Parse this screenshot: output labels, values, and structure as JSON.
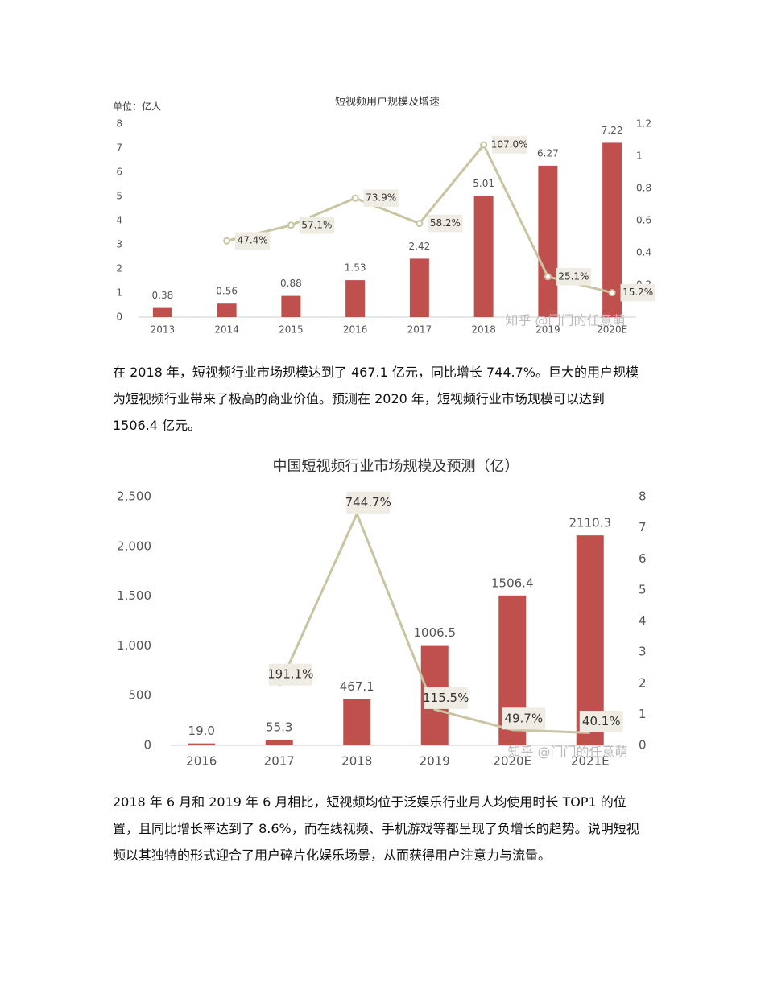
{
  "chart_data": [
    {
      "type": "bar",
      "title": "短视频用户规模及增速",
      "unit": "单位：亿人",
      "watermark": "知乎 @门门的任意萌",
      "categories": [
        "2013",
        "2014",
        "2015",
        "2016",
        "2017",
        "2018",
        "2019",
        "2020E"
      ],
      "series": [
        {
          "type": "bar",
          "color": "#c0504d",
          "values": [
            0.38,
            0.56,
            0.88,
            1.53,
            2.42,
            5.01,
            6.27,
            7.22
          ]
        },
        {
          "type": "line",
          "axis": "y2",
          "color": "#c9c4a2",
          "values": [
            null,
            0.474,
            0.571,
            0.739,
            0.582,
            1.07,
            0.251,
            0.152
          ],
          "value_labels": [
            null,
            "47.4%",
            "57.1%",
            "73.9%",
            "58.2%",
            "107.0%",
            "25.1%",
            "15.2%"
          ]
        }
      ],
      "ylim": [
        0,
        8
      ],
      "yticks": [
        0,
        1,
        2,
        3,
        4,
        5,
        6,
        7,
        8
      ],
      "y2lim": [
        0,
        1.2
      ],
      "y2ticks": [
        0.2,
        0.4,
        0.6,
        0.8,
        1,
        1.2
      ]
    },
    {
      "type": "bar",
      "title": "中国短视频行业市场规模及预测（亿）",
      "watermark": "知乎 @门门的任意萌",
      "categories": [
        "2016",
        "2017",
        "2018",
        "2019",
        "2020E",
        "2021E"
      ],
      "series": [
        {
          "type": "bar",
          "color": "#c0504d",
          "values": [
            19.0,
            55.3,
            467.1,
            1006.5,
            1506.4,
            2110.3
          ],
          "value_labels": [
            "19.0",
            "55.3",
            "467.1",
            "1006.5",
            "1506.4",
            "2110.3"
          ]
        },
        {
          "type": "line",
          "axis": "y2",
          "color": "#c9c4a2",
          "values": [
            null,
            1.911,
            7.447,
            1.155,
            0.497,
            0.401
          ],
          "value_labels": [
            null,
            "191.1%",
            "744.7%",
            "115.5%",
            "49.7%",
            "40.1%"
          ]
        }
      ],
      "ylim": [
        0,
        2500
      ],
      "yticks": [
        0,
        500,
        {
          "value": 1000,
          "label": "1,000"
        },
        {
          "value": 1500,
          "label": "1,500"
        },
        {
          "value": 2000,
          "label": "2,000"
        },
        {
          "value": 2500,
          "label": "2,500"
        }
      ],
      "y2lim": [
        0,
        8
      ],
      "y2ticks": [
        0,
        1,
        2,
        3,
        4,
        5,
        6,
        7,
        8
      ]
    }
  ],
  "paragraphs": [
    "在 2018 年，短视频行业市场规模达到了 467.1 亿元，同比增长 744.7%。巨大的用户规模为短视频行业带来了极高的商业价值。预测在 2020 年，短视频行业市场规模可以达到 1506.4 亿元。",
    "2018 年 6 月和 2019 年 6 月相比，短视频均位于泛娱乐行业月人均使用时长 TOP1 的位置，且同比增长率达到了 8.6%，而在线视频、手机游戏等都呈现了负增长的趋势。说明短视频以其独特的形式迎合了用户碎片化娱乐场景，从而获得用户注意力与流量。"
  ]
}
